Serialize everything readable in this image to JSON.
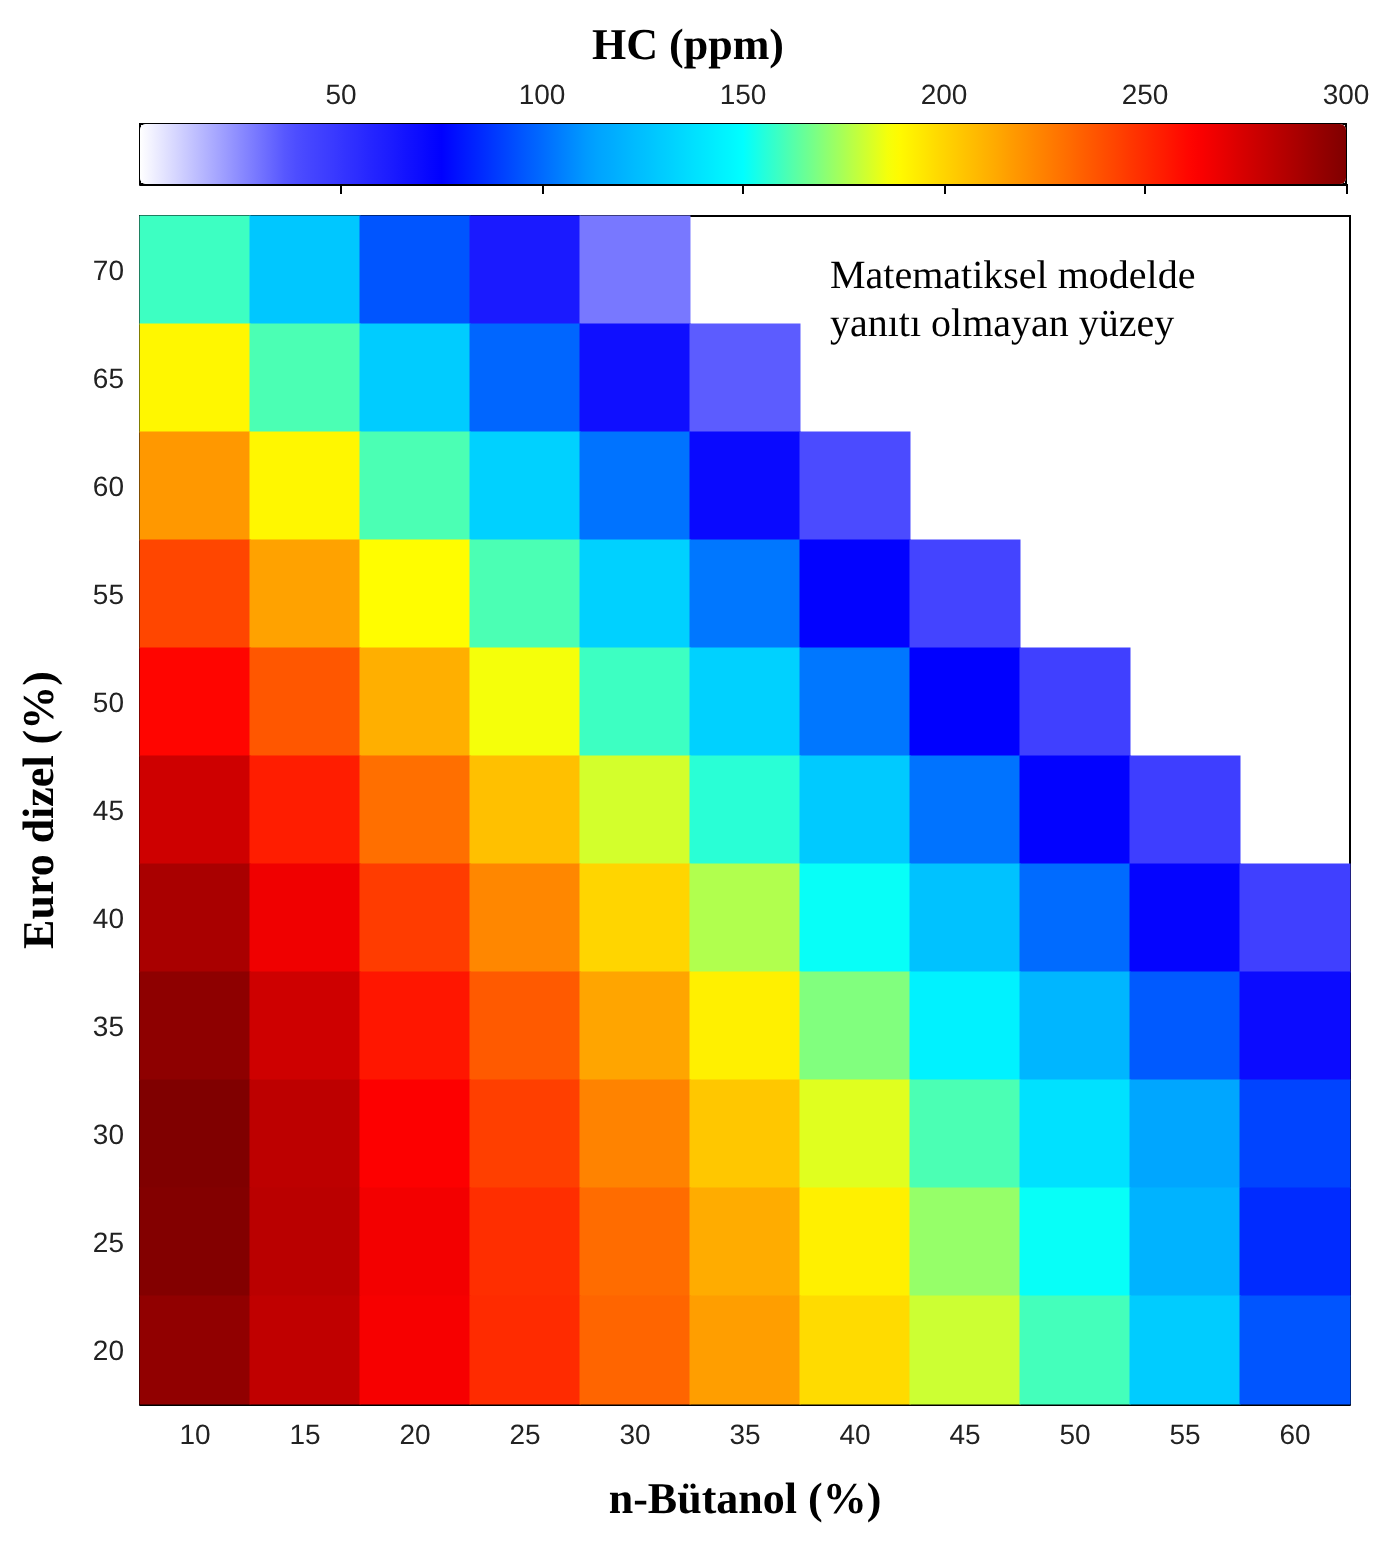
{
  "chart_data": {
    "type": "heatmap",
    "xlabel": "n-Bütanol (%)",
    "ylabel": "Euro dizel (%)",
    "clabel": "HC (ppm)",
    "categories": [
      "10",
      "15",
      "20",
      "25",
      "30",
      "35",
      "40",
      "45",
      "50",
      "55",
      "60"
    ],
    "y_categories": [
      "70",
      "65",
      "60",
      "55",
      "50",
      "45",
      "40",
      "35",
      "30",
      "25",
      "20"
    ],
    "cells": [
      [
        159,
        128,
        95,
        63,
        29,
        null,
        null,
        null,
        null,
        null,
        null
      ],
      [
        190,
        161,
        130,
        99,
        68,
        35,
        null,
        null,
        null,
        null,
        null
      ],
      [
        218,
        190,
        161,
        132,
        102,
        71,
        40,
        null,
        null,
        null,
        null
      ],
      [
        242,
        215,
        188,
        161,
        132,
        103,
        74,
        43,
        null,
        null,
        null
      ],
      [
        261,
        237,
        211,
        186,
        159,
        132,
        103,
        75,
        45,
        null,
        null
      ],
      [
        277,
        254,
        230,
        206,
        181,
        156,
        129,
        102,
        74,
        46,
        null
      ],
      [
        288,
        267,
        245,
        223,
        200,
        176,
        151,
        126,
        100,
        73,
        45
      ],
      [
        296,
        277,
        256,
        236,
        214,
        192,
        169,
        145,
        121,
        96,
        70
      ],
      [
        300,
        282,
        263,
        244,
        224,
        204,
        183,
        161,
        138,
        115,
        91
      ],
      [
        299,
        283,
        266,
        249,
        231,
        212,
        192,
        172,
        151,
        120,
        85
      ],
      [
        295,
        281,
        265,
        250,
        233,
        216,
        198,
        180,
        160,
        130,
        95
      ]
    ],
    "clim": [
      0,
      300
    ],
    "cticks": [
      50,
      100,
      150,
      200,
      250,
      300
    ],
    "annotations": [
      "Matematiksel modelde yanıtı olmayan yüzey"
    ]
  }
}
